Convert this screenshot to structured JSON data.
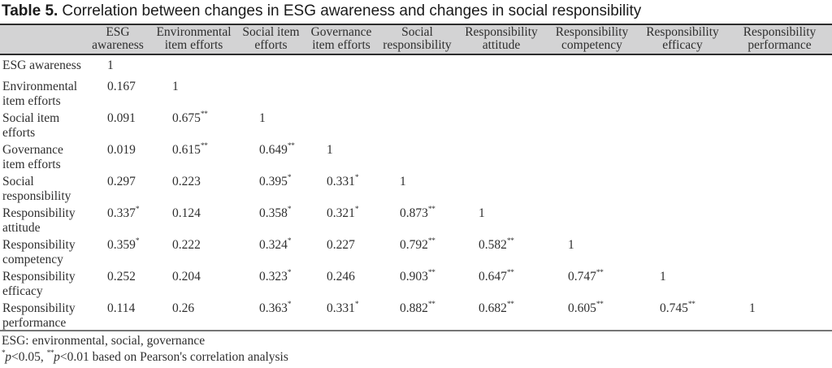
{
  "caption": {
    "label": "Table 5.",
    "text": "Correlation between changes in ESG awareness and changes in social responsibility"
  },
  "table": {
    "columns": [
      "ESG awareness",
      "Environmental item efforts",
      "Social item efforts",
      "Governance item efforts",
      "Social responsibility",
      "Responsibility attitude",
      "Responsibility competency",
      "Responsibility efficacy",
      "Responsibility performance"
    ],
    "rows": [
      {
        "label": "ESG awareness",
        "values": [
          "1"
        ]
      },
      {
        "label": "Environmental item efforts",
        "values": [
          "0.167",
          "1"
        ]
      },
      {
        "label": "Social item efforts",
        "values": [
          "0.091",
          "0.675**",
          "1"
        ]
      },
      {
        "label": "Governance item efforts",
        "values": [
          "0.019",
          "0.615**",
          "0.649**",
          "1"
        ]
      },
      {
        "label": "Social responsibility",
        "values": [
          "0.297",
          "0.223",
          "0.395*",
          "0.331*",
          "1"
        ]
      },
      {
        "label": "Responsibility attitude",
        "values": [
          "0.337*",
          "0.124",
          "0.358*",
          "0.321*",
          "0.873**",
          "1"
        ]
      },
      {
        "label": "Responsibility competency",
        "values": [
          "0.359*",
          "0.222",
          "0.324*",
          "0.227",
          "0.792**",
          "0.582**",
          "1"
        ]
      },
      {
        "label": "Responsibility efficacy",
        "values": [
          "0.252",
          "0.204",
          "0.323*",
          "0.246",
          "0.903**",
          "0.647**",
          "0.747**",
          "1"
        ]
      },
      {
        "label": "Responsibility performance",
        "values": [
          "0.114",
          "0.26",
          "0.363*",
          "0.331*",
          "0.882**",
          "0.682**",
          "0.605**",
          "0.745**",
          "1"
        ]
      }
    ]
  },
  "footnotes": {
    "esg": "ESG: environmental, social, governance",
    "star1": "*",
    "p1": "p",
    "rest1": "<0.05, ",
    "star2": "**",
    "p2": "p",
    "rest2": "<0.01 based on Pearson's correlation analysis"
  },
  "colors": {
    "header_bg": "#d3d3d4",
    "rule_dark": "#2d2d2d",
    "rule_light": "#757575",
    "text": "#2f2f2f"
  }
}
